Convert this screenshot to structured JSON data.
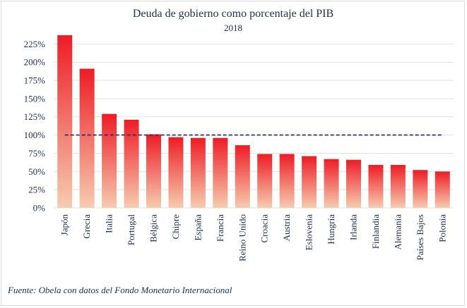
{
  "chart_data": {
    "type": "bar",
    "title": "Deuda de gobierno como porcentaje del PIB",
    "subtitle": "2018",
    "categories": [
      "Japón",
      "Grecia",
      "Italia",
      "Portugal",
      "Bélgica",
      "Chipre",
      "España",
      "Francia",
      "Reino Unido",
      "Croacia",
      "Austria",
      "Eslovenia",
      "Hungría",
      "Irlanda",
      "Finlandia",
      "Alemania",
      "Países Bajos",
      "Polonia"
    ],
    "values": [
      237,
      191,
      129,
      121,
      101,
      97,
      96,
      96,
      86,
      74,
      74,
      71,
      67,
      66,
      59,
      59,
      52,
      50
    ],
    "ylim": [
      0,
      235
    ],
    "yticks": [
      0,
      25,
      50,
      75,
      100,
      125,
      150,
      175,
      200,
      225
    ],
    "ytick_labels": [
      "0%",
      "25%",
      "50%",
      "75%",
      "100%",
      "125%",
      "150%",
      "175%",
      "200%",
      "225%"
    ],
    "reference_line": 100,
    "grid": true,
    "legend": "none",
    "colors": {
      "bar_top": "#ee1c25",
      "bar_bottom": "#f6ccb0",
      "reference": "#1f2a5a",
      "text": "#1f2d4d",
      "grid": "#e3e3e3"
    }
  },
  "source": "Fuente: Obela con datos del Fondo Monetario Internacional"
}
